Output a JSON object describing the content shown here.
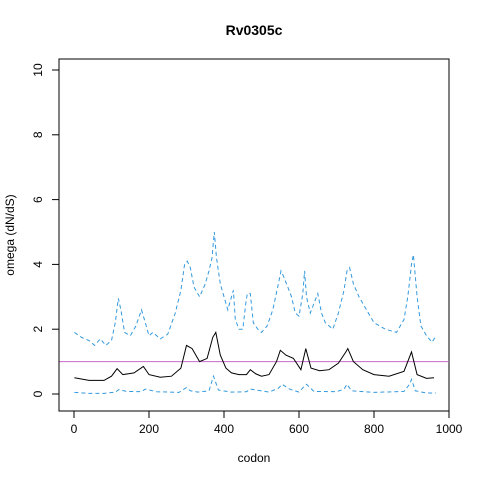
{
  "chart_data": {
    "type": "line",
    "title": "Rv0305c",
    "xlabel": "codon",
    "ylabel": "omega (dN/dS)",
    "xlim": [
      0,
      1000
    ],
    "ylim": [
      0,
      10
    ],
    "x_ticks": [
      0,
      200,
      400,
      600,
      800,
      1000
    ],
    "y_ticks": [
      0,
      2,
      4,
      6,
      8,
      10
    ],
    "reference_line": {
      "y": 1,
      "color": "#cc66cc"
    },
    "series": [
      {
        "role": "estimate",
        "color": "#000000",
        "style": "solid",
        "x": [
          1,
          40,
          80,
          100,
          115,
          130,
          160,
          185,
          200,
          230,
          260,
          285,
          300,
          315,
          335,
          355,
          370,
          378,
          390,
          405,
          420,
          440,
          460,
          470,
          485,
          500,
          520,
          540,
          550,
          565,
          585,
          605,
          618,
          632,
          655,
          680,
          705,
          725,
          730,
          745,
          770,
          800,
          840,
          880,
          900,
          915,
          940,
          960
        ],
        "y": [
          0.5,
          0.42,
          0.42,
          0.55,
          0.78,
          0.6,
          0.65,
          0.85,
          0.6,
          0.52,
          0.55,
          0.8,
          1.5,
          1.4,
          1.0,
          1.1,
          1.75,
          1.9,
          1.2,
          0.8,
          0.65,
          0.6,
          0.6,
          0.75,
          0.62,
          0.55,
          0.6,
          1.0,
          1.35,
          1.2,
          1.1,
          0.75,
          1.4,
          0.8,
          0.72,
          0.75,
          0.95,
          1.3,
          1.4,
          1.0,
          0.75,
          0.6,
          0.55,
          0.7,
          1.3,
          0.6,
          0.48,
          0.5
        ]
      },
      {
        "role": "upper",
        "color": "#3399dd",
        "style": "dashed",
        "x": [
          1,
          20,
          40,
          55,
          70,
          85,
          100,
          110,
          118,
          125,
          135,
          150,
          165,
          180,
          190,
          200,
          210,
          230,
          250,
          270,
          285,
          295,
          302,
          310,
          320,
          335,
          350,
          360,
          368,
          374,
          380,
          390,
          400,
          410,
          420,
          425,
          430,
          440,
          450,
          458,
          462,
          470,
          478,
          490,
          500,
          515,
          530,
          545,
          552,
          560,
          570,
          580,
          590,
          600,
          610,
          615,
          620,
          630,
          640,
          650,
          660,
          670,
          690,
          705,
          720,
          728,
          735,
          745,
          760,
          780,
          800,
          830,
          860,
          880,
          890,
          900,
          905,
          915,
          925,
          940,
          955,
          965
        ],
        "y": [
          1.9,
          1.75,
          1.65,
          1.5,
          1.7,
          1.5,
          1.65,
          2.2,
          2.95,
          2.6,
          1.9,
          1.8,
          2.1,
          2.6,
          2.2,
          1.8,
          1.9,
          1.7,
          1.85,
          2.5,
          3.2,
          4.0,
          4.1,
          3.9,
          3.3,
          3.0,
          3.4,
          3.8,
          4.2,
          5.0,
          4.2,
          3.4,
          3.0,
          2.6,
          3.0,
          3.2,
          2.3,
          2.0,
          2.0,
          2.8,
          3.1,
          3.1,
          2.2,
          2.0,
          1.9,
          2.1,
          2.6,
          3.4,
          3.8,
          3.6,
          3.3,
          3.0,
          2.5,
          2.4,
          3.1,
          3.8,
          3.0,
          2.5,
          2.8,
          3.1,
          2.5,
          2.2,
          2.0,
          2.5,
          3.2,
          3.8,
          3.9,
          3.4,
          3.0,
          2.6,
          2.2,
          2.0,
          1.9,
          2.3,
          3.0,
          4.0,
          4.3,
          3.0,
          2.1,
          1.8,
          1.6,
          1.8
        ]
      },
      {
        "role": "lower",
        "color": "#3399dd",
        "style": "dashed",
        "x": [
          1,
          40,
          80,
          110,
          120,
          140,
          180,
          190,
          220,
          280,
          300,
          310,
          330,
          360,
          372,
          385,
          420,
          460,
          470,
          520,
          545,
          555,
          575,
          600,
          615,
          620,
          640,
          700,
          720,
          728,
          740,
          800,
          880,
          895,
          900,
          910,
          940,
          965
        ],
        "y": [
          0.05,
          0.02,
          0.02,
          0.06,
          0.14,
          0.08,
          0.07,
          0.15,
          0.07,
          0.05,
          0.2,
          0.1,
          0.06,
          0.1,
          0.55,
          0.12,
          0.06,
          0.07,
          0.15,
          0.06,
          0.18,
          0.3,
          0.15,
          0.06,
          0.25,
          0.3,
          0.08,
          0.07,
          0.15,
          0.3,
          0.1,
          0.05,
          0.08,
          0.3,
          0.45,
          0.1,
          0.03,
          0.03
        ]
      }
    ]
  }
}
